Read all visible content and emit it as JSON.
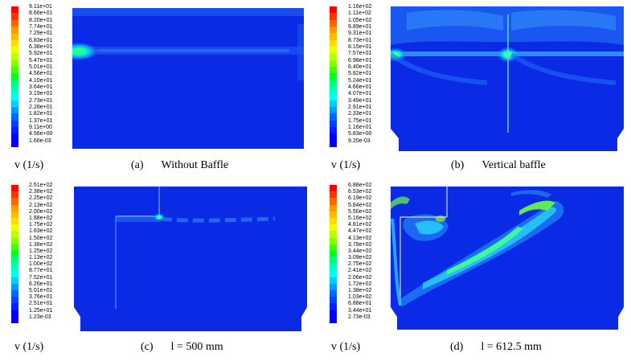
{
  "panels": [
    {
      "id": "a",
      "tag": "(a)",
      "title": "Without Baffle",
      "unit_label": "v (1/s)",
      "legend": [
        "9.11e+01",
        "8.66e+01",
        "8.20e+01",
        "7.74e+01",
        "7.29e+01",
        "6.83e+01",
        "6.38e+01",
        "5.92e+01",
        "5.47e+01",
        "5.01e+01",
        "4.56e+01",
        "4.10e+01",
        "3.64e+01",
        "3.19e+01",
        "2.73e+01",
        "2.28e+01",
        "1.82e+01",
        "1.37e+01",
        "9.11e+00",
        "4.56e+00",
        "1.66e-03"
      ]
    },
    {
      "id": "b",
      "tag": "(b)",
      "title": "Vertical baffle",
      "unit_label": "v (1/s)",
      "legend": [
        "1.16e+02",
        "1.11e+02",
        "1.05e+02",
        "9.89e+01",
        "9.31e+01",
        "8.73e+01",
        "8.15e+01",
        "7.57e+01",
        "6.98e+01",
        "6.40e+01",
        "5.82e+01",
        "5.24e+01",
        "4.66e+01",
        "4.07e+01",
        "3.49e+01",
        "2.91e+01",
        "2.33e+01",
        "1.75e+01",
        "1.16e+01",
        "5.83e+00",
        "9.20e-03"
      ]
    },
    {
      "id": "c",
      "tag": "(c)",
      "title": "l = 500 mm",
      "unit_label": "v (1/s)",
      "legend": [
        "2.51e+02",
        "2.38e+02",
        "2.25e+02",
        "2.13e+02",
        "2.00e+02",
        "1.88e+02",
        "1.75e+02",
        "1.63e+02",
        "1.50e+02",
        "1.38e+02",
        "1.25e+02",
        "1.13e+02",
        "1.00e+02",
        "8.77e+01",
        "7.52e+01",
        "6.26e+01",
        "5.01e+01",
        "3.76e+01",
        "2.51e+01",
        "1.25e+01",
        "1.23e-03"
      ]
    },
    {
      "id": "d",
      "tag": "(d)",
      "title": "l = 612.5 mm",
      "unit_label": "v (1/s)",
      "legend": [
        "6.88e+02",
        "6.53e+02",
        "6.19e+02",
        "5.84e+02",
        "5.50e+02",
        "5.16e+02",
        "4.81e+02",
        "4.47e+02",
        "4.13e+02",
        "3.78e+02",
        "3.44e+02",
        "3.09e+02",
        "2.75e+02",
        "2.41e+02",
        "2.06e+02",
        "1.72e+02",
        "1.38e+02",
        "1.03e+02",
        "6.88e+01",
        "3.44e+01",
        "2.73e-03"
      ]
    }
  ],
  "colormap": [
    "#ff0000",
    "#ff3300",
    "#ff6600",
    "#ff9900",
    "#ffbb00",
    "#ffdd00",
    "#eeff00",
    "#bbff00",
    "#88ff00",
    "#44ff00",
    "#00ff22",
    "#00ff77",
    "#00ffbb",
    "#00ffee",
    "#00ccff",
    "#0099ff",
    "#0066ff",
    "#0044ff",
    "#0022ff",
    "#0000ff",
    "#0000ee"
  ],
  "field_color": "#0a2ae6"
}
